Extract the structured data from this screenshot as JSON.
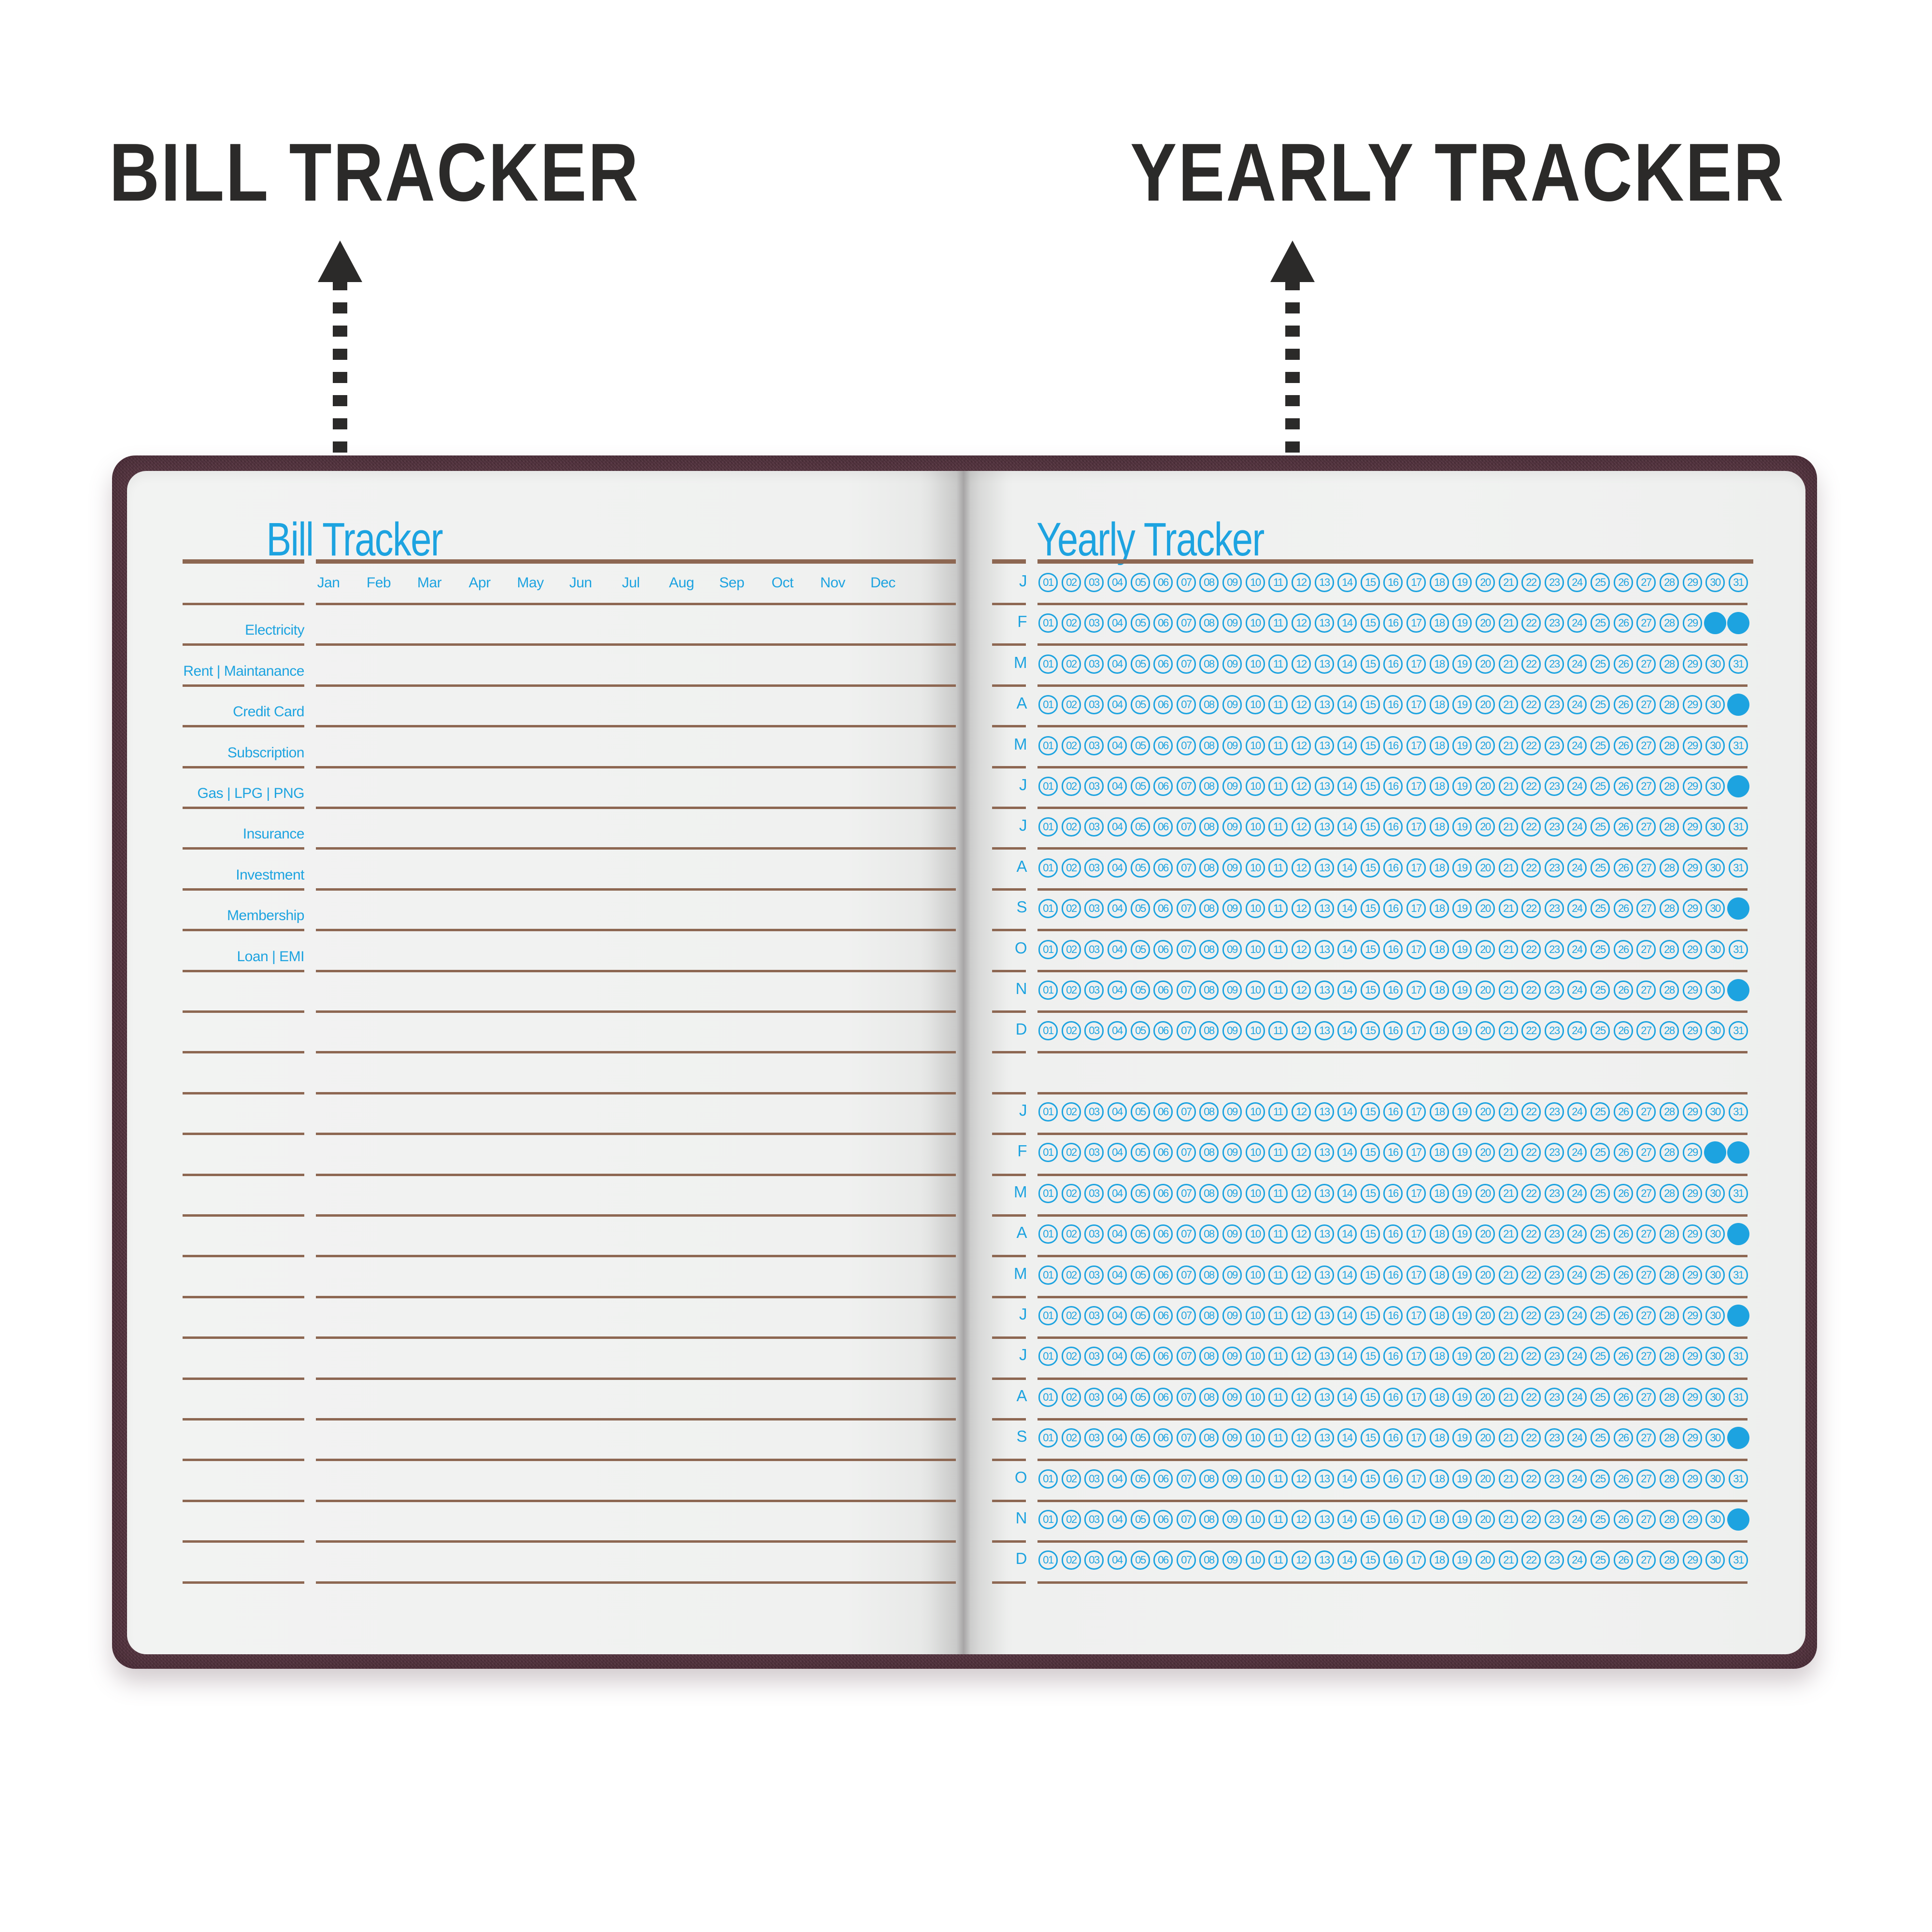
{
  "annotations": {
    "bill_label": "BILL TRACKER",
    "yearly_label": "YEARLY TRACKER"
  },
  "bill_tracker": {
    "title": "Bill Tracker",
    "months": [
      "Jan",
      "Feb",
      "Mar",
      "Apr",
      "May",
      "Jun",
      "Jul",
      "Aug",
      "Sep",
      "Oct",
      "Nov",
      "Dec"
    ],
    "categories": [
      "Electricity",
      "Rent | Maintanance",
      "Credit Card",
      "Subscription",
      "Gas | LPG | PNG",
      "Insurance",
      "Investment",
      "Membership",
      "Loan | EMI"
    ],
    "total_rows": 24
  },
  "yearly_tracker": {
    "title": "Yearly Tracker",
    "month_letters": [
      "J",
      "F",
      "M",
      "A",
      "M",
      "J",
      "J",
      "A",
      "S",
      "O",
      "N",
      "D"
    ],
    "day_labels": [
      "01",
      "02",
      "03",
      "04",
      "05",
      "06",
      "07",
      "08",
      "09",
      "10",
      "11",
      "12",
      "13",
      "14",
      "15",
      "16",
      "17",
      "18",
      "19",
      "20",
      "21",
      "22",
      "23",
      "24",
      "25",
      "26",
      "27",
      "28",
      "29",
      "30",
      "31"
    ],
    "block_count": 2,
    "filled_days_by_month_index": {
      "1": [
        30,
        31
      ],
      "3": [
        31
      ],
      "5": [
        31
      ],
      "8": [
        31
      ],
      "10": [
        31
      ]
    }
  },
  "colors": {
    "accent_blue": "#1da3e0",
    "line_brown": "#8d6752",
    "ink_black": "#2b2a29",
    "cover_maroon": "#5f3e49",
    "page_white": "#f1f2f1"
  }
}
